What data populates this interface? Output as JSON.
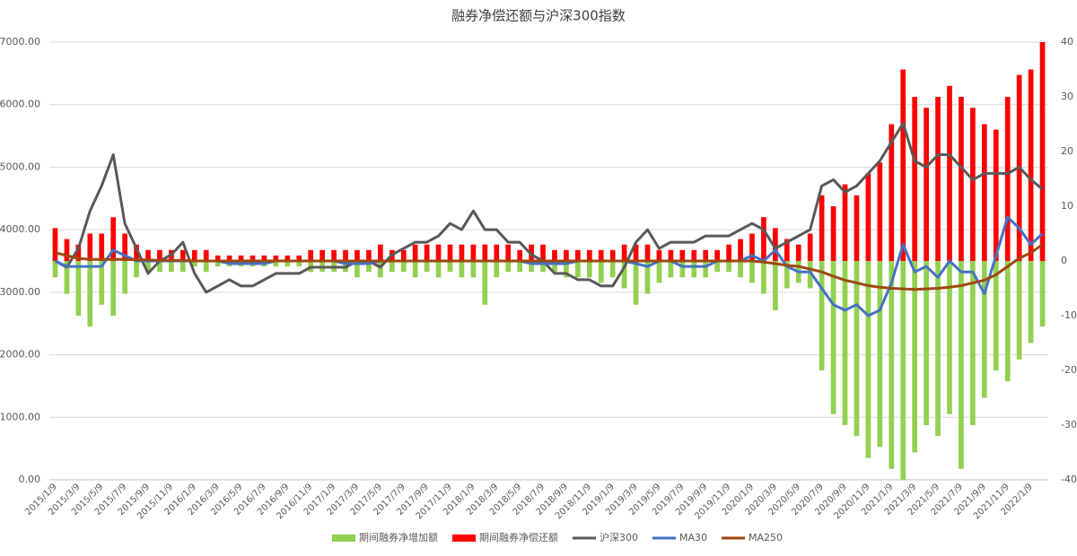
{
  "chart_data": {
    "type": "combo",
    "title": "融券净偿还额与沪深300指数",
    "categories": [
      "2015/1/9",
      null,
      "2015/3/9",
      null,
      "2015/5/9",
      null,
      "2015/7/9",
      null,
      "2015/9/9",
      null,
      "2015/11/9",
      null,
      "2016/1/9",
      null,
      "2016/3/9",
      null,
      "2016/5/9",
      null,
      "2016/7/9",
      null,
      "2016/9/9",
      null,
      "2016/11/9",
      null,
      "2017/1/9",
      null,
      "2017/3/9",
      null,
      "2017/5/9",
      null,
      "2017/7/9",
      null,
      "2017/9/9",
      null,
      "2017/11/9",
      null,
      "2018/1/9",
      null,
      "2018/3/9",
      null,
      "2018/5/9",
      null,
      "2018/7/9",
      null,
      "2018/9/9",
      null,
      "2018/11/9",
      null,
      "2019/1/9",
      null,
      "2019/3/9",
      null,
      "2019/5/9",
      null,
      "2019/7/9",
      null,
      "2019/9/9",
      null,
      "2019/11/9",
      null,
      "2020/1/9",
      null,
      "2020/3/9",
      null,
      "2020/5/9",
      null,
      "2020/7/9",
      null,
      "2020/9/9",
      null,
      "2020/11/9",
      null,
      "2021/1/9",
      null,
      "2021/3/9",
      null,
      "2021/5/9",
      null,
      "2021/7/9",
      null,
      "2021/9/9",
      null,
      "2021/11/9",
      null,
      "2022/1/9",
      null
    ],
    "series": [
      {
        "name": "期间融券净增加额",
        "type": "bar",
        "axis": "y2",
        "color": "#92d050",
        "values": [
          -3,
          -6,
          -10,
          -12,
          -8,
          -10,
          -6,
          -3,
          -2,
          -2,
          -2,
          -2,
          -1,
          -2,
          -1,
          -1,
          -1,
          -1,
          -1,
          -1,
          -1,
          -1,
          -2,
          -2,
          -2,
          -2,
          -3,
          -2,
          -3,
          -2,
          -2,
          -3,
          -2,
          -3,
          -2,
          -3,
          -3,
          -8,
          -3,
          -2,
          -2,
          -2,
          -2,
          -2,
          -3,
          -3,
          -3,
          -4,
          -3,
          -5,
          -8,
          -6,
          -4,
          -3,
          -3,
          -3,
          -3,
          -2,
          -2,
          -3,
          -4,
          -6,
          -9,
          -5,
          -4,
          -5,
          -20,
          -28,
          -30,
          -32,
          -36,
          -34,
          -38,
          -40,
          -35,
          -30,
          -32,
          -28,
          -38,
          -30,
          -25,
          -20,
          -22,
          -18,
          -15,
          -12
        ]
      },
      {
        "name": "期间融券净偿还额",
        "type": "bar",
        "axis": "y2",
        "color": "#ff0000",
        "values": [
          6,
          4,
          3,
          5,
          5,
          8,
          5,
          3,
          2,
          2,
          2,
          2,
          2,
          2,
          1,
          1,
          1,
          1,
          1,
          1,
          1,
          1,
          2,
          2,
          2,
          2,
          2,
          2,
          3,
          2,
          2,
          3,
          3,
          3,
          3,
          3,
          3,
          3,
          3,
          3,
          2,
          3,
          3,
          2,
          2,
          2,
          2,
          2,
          2,
          3,
          3,
          3,
          2,
          2,
          2,
          2,
          2,
          2,
          3,
          4,
          5,
          8,
          6,
          4,
          3,
          5,
          12,
          10,
          14,
          12,
          16,
          18,
          25,
          35,
          30,
          28,
          30,
          32,
          30,
          28,
          25,
          24,
          30,
          34,
          35,
          40
        ]
      },
      {
        "name": "沪深300",
        "type": "line",
        "axis": "y",
        "color": "#595959",
        "values": [
          3500,
          3400,
          3700,
          4300,
          4700,
          5200,
          4100,
          3700,
          3300,
          3500,
          3600,
          3800,
          3300,
          3000,
          3100,
          3200,
          3100,
          3100,
          3200,
          3300,
          3300,
          3300,
          3400,
          3400,
          3400,
          3400,
          3500,
          3500,
          3400,
          3600,
          3700,
          3800,
          3800,
          3900,
          4100,
          4000,
          4300,
          4000,
          4000,
          3800,
          3800,
          3600,
          3500,
          3300,
          3300,
          3200,
          3200,
          3100,
          3100,
          3400,
          3800,
          4000,
          3700,
          3800,
          3800,
          3800,
          3900,
          3900,
          3900,
          4000,
          4100,
          4000,
          3700,
          3800,
          3900,
          4000,
          4700,
          4800,
          4600,
          4700,
          4900,
          5100,
          5400,
          5700,
          5100,
          5000,
          5200,
          5200,
          5000,
          4800,
          4900,
          4900,
          4900,
          5000,
          4800,
          4650
        ]
      },
      {
        "name": "MA30",
        "type": "line",
        "axis": "y2",
        "color": "#4472c4",
        "values": [
          0,
          -1,
          -1,
          -1,
          -1,
          2,
          1,
          0,
          0,
          0,
          0,
          0,
          0,
          0,
          0,
          -0.5,
          -0.5,
          -0.5,
          -0.5,
          0,
          0,
          0,
          0,
          0,
          0,
          -0.5,
          -0.5,
          -0.5,
          0,
          0,
          0,
          0,
          0,
          0,
          0,
          0,
          0,
          0,
          0,
          0,
          0,
          -0.5,
          -0.5,
          -0.5,
          -0.5,
          0,
          0,
          0,
          0,
          0,
          -0.5,
          -1,
          0,
          0,
          -1,
          -1,
          -1,
          0,
          0,
          0,
          1,
          0,
          2,
          -1,
          -2,
          -2,
          -5,
          -8,
          -9,
          -8,
          -10,
          -9,
          -4,
          3,
          -2,
          -1,
          -3,
          0,
          -2,
          -2,
          -6,
          1,
          8,
          6,
          3,
          5
        ]
      },
      {
        "name": "MA250",
        "type": "line",
        "axis": "y2",
        "color": "#9e480e",
        "values": [
          1.5,
          1,
          0.5,
          0.3,
          0.3,
          0.3,
          0.3,
          0.2,
          0.2,
          0.1,
          0.1,
          0.1,
          0,
          0,
          0,
          0,
          0,
          0,
          0,
          0,
          0,
          0,
          0,
          0,
          0,
          0,
          0,
          0,
          0,
          0,
          0,
          0,
          0,
          0,
          0,
          0,
          0,
          0,
          0,
          0,
          0,
          0,
          0,
          0,
          0,
          0,
          0,
          0,
          0,
          0,
          0,
          0,
          0,
          0,
          0,
          0,
          0,
          0,
          0,
          0,
          0,
          -0.2,
          -0.5,
          -0.8,
          -1,
          -1.5,
          -2,
          -2.8,
          -3.5,
          -4,
          -4.5,
          -4.8,
          -5,
          -5.1,
          -5.2,
          -5.1,
          -5,
          -4.8,
          -4.5,
          -4,
          -3.5,
          -2.5,
          -1,
          0.5,
          1.5,
          3
        ]
      }
    ],
    "ylim": [
      0,
      7000
    ],
    "yticks": [
      {
        "value": 0,
        "label": "0.00"
      },
      {
        "value": 1000,
        "label": "1000.00"
      },
      {
        "value": 2000,
        "label": "2000.00"
      },
      {
        "value": 3000,
        "label": "3000.00"
      },
      {
        "value": 4000,
        "label": "4000.00"
      },
      {
        "value": 5000,
        "label": "5000.00"
      },
      {
        "value": 6000,
        "label": "6000.00"
      },
      {
        "value": 7000,
        "label": "7000.00"
      }
    ],
    "y2lim": [
      -40,
      40
    ],
    "y2ticks": [
      -40,
      -30,
      -20,
      -10,
      0,
      10,
      20,
      30,
      40
    ],
    "grid": true
  }
}
